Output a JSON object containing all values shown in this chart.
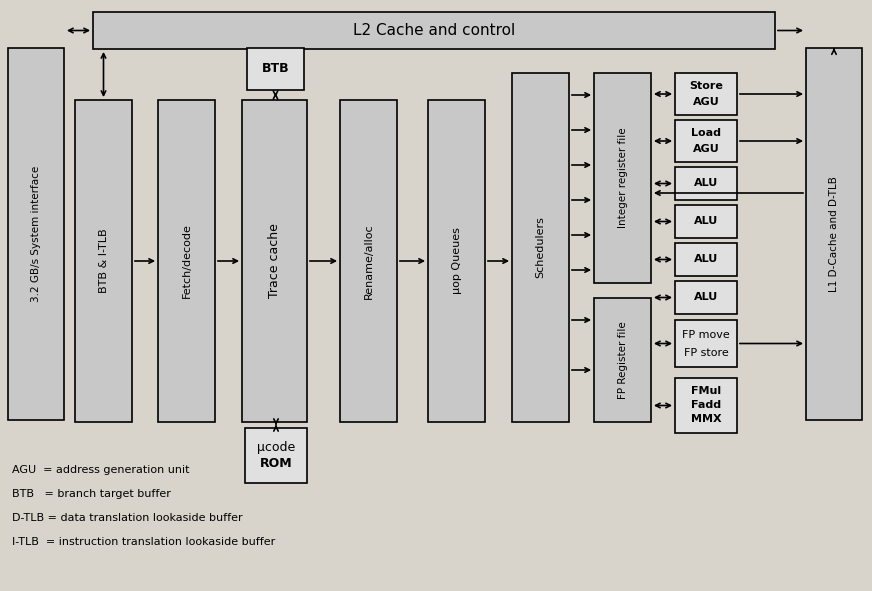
{
  "fig_bg": "#c8c8c8",
  "diagram_bg": "#d4d4d4",
  "box_fill": "#c8c8c8",
  "box_fill_dark": "#b8b8b8",
  "box_fill_light": "#e0e0e0",
  "box_edge": "#000000",
  "lw": 1.2,
  "legend_lines": [
    "AGU  = address generation unit",
    "BTB   = branch target buffer",
    "D-TLB = data translation lookaside buffer",
    "I-TLB  = instruction translation lookaside buffer"
  ],
  "l2_label": "L2 Cache and control",
  "sys_label": "3.2 GB/s System interface",
  "l1_label": "L1 D-Cache and D-TLB",
  "btb_label": "BTB",
  "ucode_lines": [
    "μcode",
    "ROM"
  ],
  "pipe_labels": [
    "BTB & I-TLB",
    "Fetch/decode",
    "Trace cache",
    "Rename/alloc",
    "μop Queues",
    "Schedulers"
  ],
  "int_reg_label": "Integer register file",
  "fp_reg_label": "FP Register file",
  "store_agu_lines": [
    "Store",
    "AGU"
  ],
  "load_agu_lines": [
    "Load",
    "AGU"
  ],
  "alu_label": "ALU",
  "fp_move_lines": [
    "FP move",
    "FP store"
  ],
  "fmul_lines": [
    "FMul",
    "Fadd",
    "MMX"
  ]
}
